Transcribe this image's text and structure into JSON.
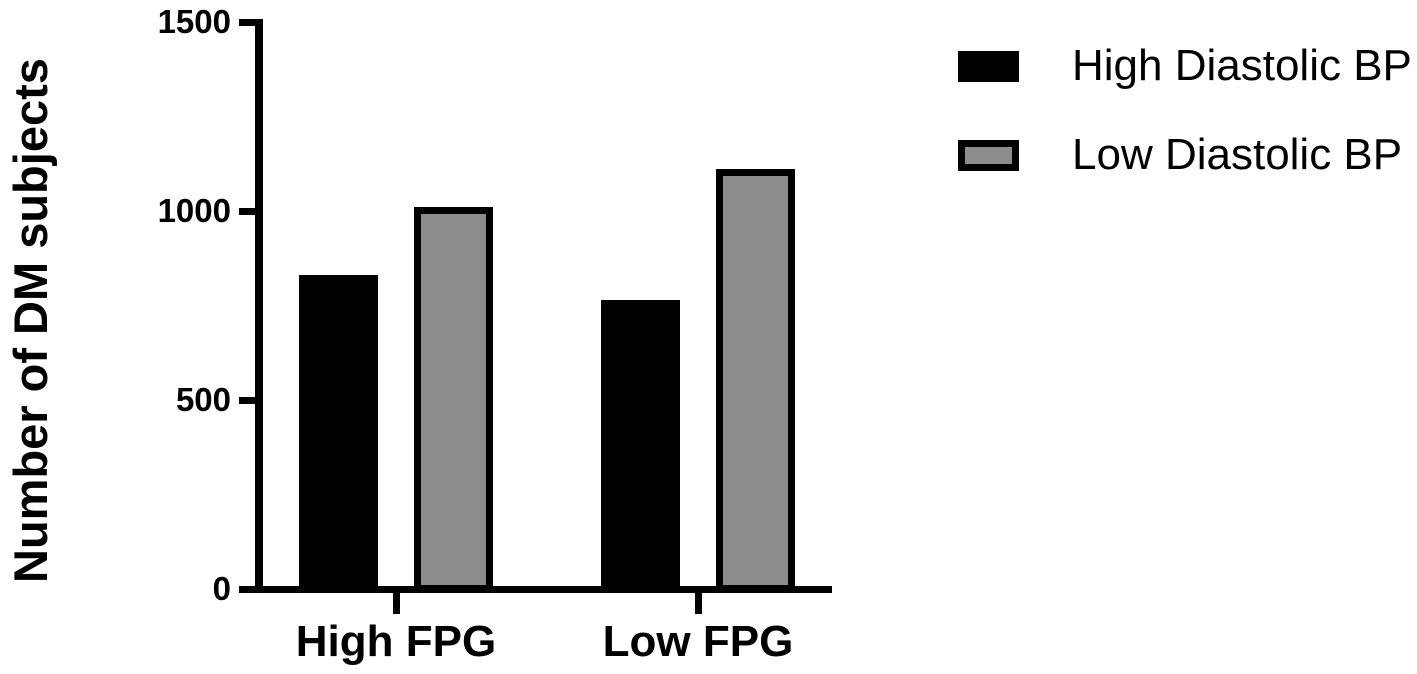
{
  "chart_data": {
    "type": "bar",
    "title": "",
    "xlabel": "",
    "ylabel": "Number of DM subjects",
    "categories": [
      "High FPG",
      "Low FPG"
    ],
    "series": [
      {
        "name": "High Diastolic BP",
        "color": "#000000",
        "values": [
          830,
          765
        ]
      },
      {
        "name": "Low Diastolic BP",
        "color": "#8c8c8c",
        "values": [
          1010,
          1110
        ]
      }
    ],
    "ylim": [
      0,
      1500
    ],
    "yticks": [
      0,
      500,
      1000,
      1500
    ],
    "grid": false,
    "legend_position": "top-right",
    "bar_outline_color": "#000000",
    "axis_color": "#000000"
  }
}
